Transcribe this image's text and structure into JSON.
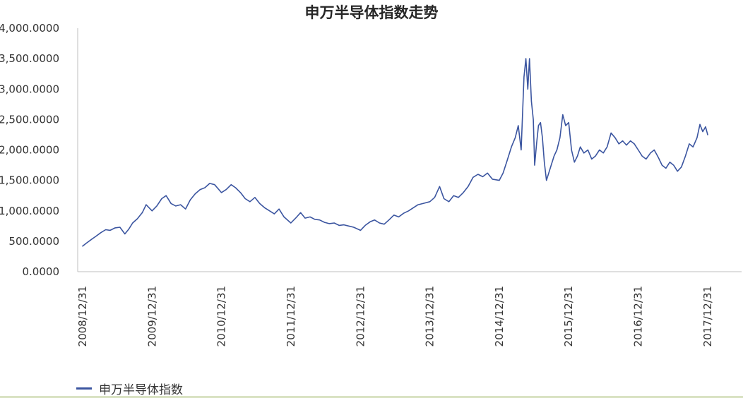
{
  "chart_data": {
    "type": "line",
    "title": "申万半导体指数走势",
    "xlabel": "",
    "ylabel": "",
    "ylim": [
      0,
      4000
    ],
    "y_ticks": [
      0,
      500,
      1000,
      1500,
      2000,
      2500,
      3000,
      3500,
      4000
    ],
    "y_tick_labels": [
      "0.0000",
      "500.0000",
      "1,000.0000",
      "1,500.0000",
      "2,000.0000",
      "2,500.0000",
      "3,000.0000",
      "3,500.0000",
      "4,000.0000"
    ],
    "x_tick_labels": [
      "2008/12/31",
      "2009/12/31",
      "2010/12/31",
      "2011/12/31",
      "2012/12/31",
      "2013/12/31",
      "2014/12/31",
      "2015/12/31",
      "2016/12/31",
      "2017/12/31"
    ],
    "x_tick_dates": [
      "2008-12-31",
      "2009-12-31",
      "2010-12-31",
      "2011-12-31",
      "2012-12-31",
      "2013-12-31",
      "2014-12-31",
      "2015-12-31",
      "2016-12-31",
      "2017-12-31"
    ],
    "grid": false,
    "legend_position": "bottom-left",
    "series": [
      {
        "name": "申万半导体指数",
        "color": "#3b55a0",
        "points": [
          [
            "2008-12-31",
            420
          ],
          [
            "2009-01-20",
            470
          ],
          [
            "2009-02-15",
            530
          ],
          [
            "2009-03-10",
            580
          ],
          [
            "2009-04-05",
            640
          ],
          [
            "2009-05-01",
            690
          ],
          [
            "2009-05-25",
            680
          ],
          [
            "2009-06-20",
            720
          ],
          [
            "2009-07-15",
            730
          ],
          [
            "2009-08-10",
            620
          ],
          [
            "2009-08-31",
            700
          ],
          [
            "2009-09-20",
            800
          ],
          [
            "2009-10-15",
            870
          ],
          [
            "2009-11-10",
            970
          ],
          [
            "2009-11-30",
            1100
          ],
          [
            "2009-12-31",
            1000
          ],
          [
            "2010-01-25",
            1080
          ],
          [
            "2010-02-20",
            1200
          ],
          [
            "2010-03-15",
            1250
          ],
          [
            "2010-04-10",
            1120
          ],
          [
            "2010-05-05",
            1080
          ],
          [
            "2010-05-30",
            1100
          ],
          [
            "2010-06-25",
            1030
          ],
          [
            "2010-07-20",
            1180
          ],
          [
            "2010-08-15",
            1280
          ],
          [
            "2010-09-10",
            1350
          ],
          [
            "2010-10-05",
            1380
          ],
          [
            "2010-10-30",
            1450
          ],
          [
            "2010-11-25",
            1430
          ],
          [
            "2010-12-31",
            1300
          ],
          [
            "2011-01-25",
            1350
          ],
          [
            "2011-02-20",
            1430
          ],
          [
            "2011-03-15",
            1380
          ],
          [
            "2011-04-10",
            1300
          ],
          [
            "2011-05-05",
            1200
          ],
          [
            "2011-05-30",
            1150
          ],
          [
            "2011-06-25",
            1220
          ],
          [
            "2011-07-20",
            1120
          ],
          [
            "2011-08-15",
            1050
          ],
          [
            "2011-09-10",
            1000
          ],
          [
            "2011-10-05",
            950
          ],
          [
            "2011-10-30",
            1030
          ],
          [
            "2011-11-25",
            900
          ],
          [
            "2011-12-31",
            800
          ],
          [
            "2012-01-25",
            880
          ],
          [
            "2012-02-20",
            970
          ],
          [
            "2012-03-15",
            880
          ],
          [
            "2012-04-10",
            900
          ],
          [
            "2012-05-05",
            860
          ],
          [
            "2012-05-30",
            850
          ],
          [
            "2012-06-25",
            810
          ],
          [
            "2012-07-20",
            790
          ],
          [
            "2012-08-15",
            800
          ],
          [
            "2012-09-10",
            760
          ],
          [
            "2012-10-05",
            770
          ],
          [
            "2012-10-30",
            750
          ],
          [
            "2012-11-25",
            730
          ],
          [
            "2012-12-31",
            680
          ],
          [
            "2013-01-25",
            760
          ],
          [
            "2013-02-20",
            820
          ],
          [
            "2013-03-15",
            850
          ],
          [
            "2013-04-10",
            800
          ],
          [
            "2013-05-05",
            780
          ],
          [
            "2013-05-30",
            850
          ],
          [
            "2013-06-25",
            930
          ],
          [
            "2013-07-20",
            900
          ],
          [
            "2013-08-15",
            960
          ],
          [
            "2013-09-10",
            1000
          ],
          [
            "2013-10-05",
            1050
          ],
          [
            "2013-10-30",
            1100
          ],
          [
            "2013-11-25",
            1120
          ],
          [
            "2013-12-31",
            1150
          ],
          [
            "2014-01-25",
            1220
          ],
          [
            "2014-02-20",
            1400
          ],
          [
            "2014-03-15",
            1200
          ],
          [
            "2014-04-10",
            1150
          ],
          [
            "2014-05-05",
            1250
          ],
          [
            "2014-05-30",
            1220
          ],
          [
            "2014-06-25",
            1300
          ],
          [
            "2014-07-20",
            1400
          ],
          [
            "2014-08-15",
            1550
          ],
          [
            "2014-09-10",
            1600
          ],
          [
            "2014-10-05",
            1560
          ],
          [
            "2014-10-30",
            1620
          ],
          [
            "2014-11-25",
            1520
          ],
          [
            "2014-12-31",
            1500
          ],
          [
            "2015-01-20",
            1620
          ],
          [
            "2015-02-10",
            1820
          ],
          [
            "2015-03-05",
            2050
          ],
          [
            "2015-03-25",
            2200
          ],
          [
            "2015-04-10",
            2400
          ],
          [
            "2015-04-25",
            2000
          ],
          [
            "2015-05-10",
            3200
          ],
          [
            "2015-05-20",
            3500
          ],
          [
            "2015-05-30",
            3000
          ],
          [
            "2015-06-08",
            3500
          ],
          [
            "2015-06-18",
            2800
          ],
          [
            "2015-06-28",
            2500
          ],
          [
            "2015-07-05",
            1750
          ],
          [
            "2015-07-15",
            2100
          ],
          [
            "2015-07-25",
            2400
          ],
          [
            "2015-08-05",
            2450
          ],
          [
            "2015-08-15",
            2200
          ],
          [
            "2015-08-25",
            1800
          ],
          [
            "2015-09-05",
            1500
          ],
          [
            "2015-09-15",
            1600
          ],
          [
            "2015-09-30",
            1750
          ],
          [
            "2015-10-15",
            1900
          ],
          [
            "2015-10-30",
            2000
          ],
          [
            "2015-11-15",
            2200
          ],
          [
            "2015-11-30",
            2580
          ],
          [
            "2015-12-15",
            2400
          ],
          [
            "2015-12-31",
            2450
          ],
          [
            "2016-01-15",
            2000
          ],
          [
            "2016-01-30",
            1800
          ],
          [
            "2016-02-15",
            1900
          ],
          [
            "2016-03-01",
            2050
          ],
          [
            "2016-03-20",
            1950
          ],
          [
            "2016-04-10",
            2000
          ],
          [
            "2016-04-30",
            1850
          ],
          [
            "2016-05-20",
            1900
          ],
          [
            "2016-06-10",
            2000
          ],
          [
            "2016-06-30",
            1950
          ],
          [
            "2016-07-20",
            2050
          ],
          [
            "2016-08-10",
            2280
          ],
          [
            "2016-08-31",
            2200
          ],
          [
            "2016-09-20",
            2100
          ],
          [
            "2016-10-10",
            2150
          ],
          [
            "2016-10-30",
            2080
          ],
          [
            "2016-11-20",
            2150
          ],
          [
            "2016-12-10",
            2100
          ],
          [
            "2016-12-31",
            2000
          ],
          [
            "2017-01-20",
            1900
          ],
          [
            "2017-02-10",
            1850
          ],
          [
            "2017-03-05",
            1950
          ],
          [
            "2017-03-25",
            2000
          ],
          [
            "2017-04-15",
            1880
          ],
          [
            "2017-05-05",
            1750
          ],
          [
            "2017-05-25",
            1700
          ],
          [
            "2017-06-15",
            1800
          ],
          [
            "2017-07-05",
            1750
          ],
          [
            "2017-07-25",
            1650
          ],
          [
            "2017-08-15",
            1720
          ],
          [
            "2017-09-05",
            1900
          ],
          [
            "2017-09-25",
            2100
          ],
          [
            "2017-10-15",
            2050
          ],
          [
            "2017-11-05",
            2200
          ],
          [
            "2017-11-20",
            2420
          ],
          [
            "2017-12-05",
            2300
          ],
          [
            "2017-12-20",
            2380
          ],
          [
            "2017-12-31",
            2250
          ]
        ]
      }
    ]
  }
}
